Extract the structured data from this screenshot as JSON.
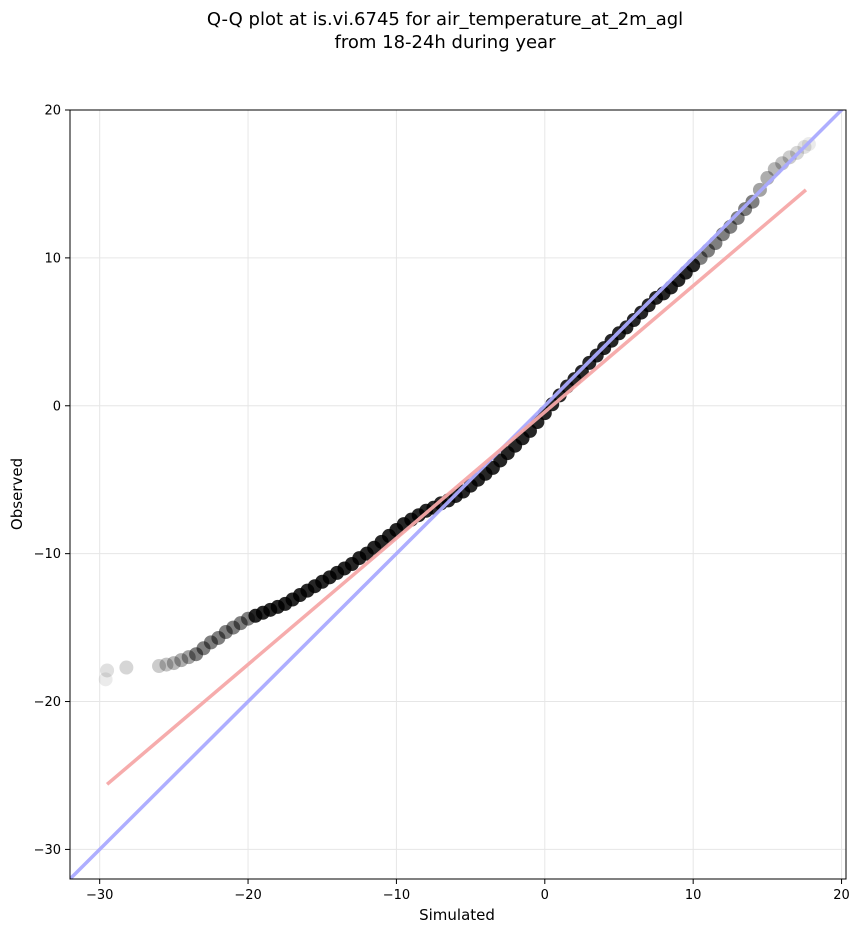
{
  "chart_data": {
    "type": "scatter",
    "title_line1": "Q-Q plot at is.vi.6745 for air_temperature_at_2m_agl",
    "title_line2": "from 18-24h during year",
    "xlabel": "Simulated",
    "ylabel": "Observed",
    "xlim": [
      -32,
      20.3
    ],
    "ylim": [
      -32,
      20
    ],
    "xticks": [
      -30,
      -20,
      -10,
      0,
      10,
      20
    ],
    "yticks": [
      -30,
      -20,
      -10,
      0,
      10,
      20
    ],
    "xtick_labels": [
      "−30",
      "−20",
      "−10",
      "0",
      "10",
      "20"
    ],
    "ytick_labels": [
      "−30",
      "−20",
      "−10",
      "0",
      "10",
      "20"
    ],
    "grid": true,
    "colors": {
      "points": "#000000",
      "identity_line": "#aaaaff",
      "fit_line": "#f5a8a8"
    },
    "series": [
      {
        "kind": "scatter",
        "points": [
          [
            -29.6,
            -18.5
          ],
          [
            -29.5,
            -17.9
          ],
          [
            -28.2,
            -17.7
          ],
          [
            -26.0,
            -17.6
          ],
          [
            -25.5,
            -17.5
          ],
          [
            -25.0,
            -17.4
          ],
          [
            -24.5,
            -17.2
          ],
          [
            -24.0,
            -17.0
          ],
          [
            -23.5,
            -16.8
          ],
          [
            -23.0,
            -16.4
          ],
          [
            -22.5,
            -16.0
          ],
          [
            -22.0,
            -15.7
          ],
          [
            -21.5,
            -15.3
          ],
          [
            -21.0,
            -15.0
          ],
          [
            -20.5,
            -14.7
          ],
          [
            -20.0,
            -14.4
          ],
          [
            -19.5,
            -14.2
          ],
          [
            -19.0,
            -14.0
          ],
          [
            -18.5,
            -13.8
          ],
          [
            -18.0,
            -13.6
          ],
          [
            -17.5,
            -13.4
          ],
          [
            -17.0,
            -13.1
          ],
          [
            -16.5,
            -12.8
          ],
          [
            -16.0,
            -12.5
          ],
          [
            -15.5,
            -12.2
          ],
          [
            -15.0,
            -11.9
          ],
          [
            -14.5,
            -11.6
          ],
          [
            -14.0,
            -11.3
          ],
          [
            -13.5,
            -11.0
          ],
          [
            -13.0,
            -10.7
          ],
          [
            -12.5,
            -10.3
          ],
          [
            -12.0,
            -10.0
          ],
          [
            -11.5,
            -9.6
          ],
          [
            -11.0,
            -9.2
          ],
          [
            -10.5,
            -8.8
          ],
          [
            -10.0,
            -8.4
          ],
          [
            -9.5,
            -8.0
          ],
          [
            -9.0,
            -7.7
          ],
          [
            -8.5,
            -7.4
          ],
          [
            -8.0,
            -7.1
          ],
          [
            -7.5,
            -6.9
          ],
          [
            -7.0,
            -6.6
          ],
          [
            -6.5,
            -6.4
          ],
          [
            -6.0,
            -6.1
          ],
          [
            -5.5,
            -5.8
          ],
          [
            -5.0,
            -5.4
          ],
          [
            -4.5,
            -5.0
          ],
          [
            -4.0,
            -4.6
          ],
          [
            -3.5,
            -4.2
          ],
          [
            -3.0,
            -3.7
          ],
          [
            -2.5,
            -3.2
          ],
          [
            -2.0,
            -2.7
          ],
          [
            -1.5,
            -2.2
          ],
          [
            -1.0,
            -1.7
          ],
          [
            -0.5,
            -1.1
          ],
          [
            0.0,
            -0.5
          ],
          [
            0.5,
            0.1
          ],
          [
            1.0,
            0.7
          ],
          [
            1.5,
            1.3
          ],
          [
            2.0,
            1.8
          ],
          [
            2.5,
            2.3
          ],
          [
            3.0,
            2.9
          ],
          [
            3.5,
            3.4
          ],
          [
            4.0,
            3.9
          ],
          [
            4.5,
            4.4
          ],
          [
            5.0,
            4.9
          ],
          [
            5.5,
            5.3
          ],
          [
            6.0,
            5.8
          ],
          [
            6.5,
            6.3
          ],
          [
            7.0,
            6.8
          ],
          [
            7.5,
            7.3
          ],
          [
            8.0,
            7.6
          ],
          [
            8.5,
            8.0
          ],
          [
            9.0,
            8.5
          ],
          [
            9.5,
            9.0
          ],
          [
            10.0,
            9.5
          ],
          [
            10.5,
            10.0
          ],
          [
            11.0,
            10.5
          ],
          [
            11.5,
            11.0
          ],
          [
            12.0,
            11.6
          ],
          [
            12.5,
            12.1
          ],
          [
            13.0,
            12.7
          ],
          [
            13.5,
            13.3
          ],
          [
            14.0,
            13.8
          ],
          [
            14.5,
            14.6
          ],
          [
            15.0,
            15.4
          ],
          [
            15.5,
            16.0
          ],
          [
            16.0,
            16.4
          ],
          [
            16.5,
            16.8
          ],
          [
            17.0,
            17.1
          ],
          [
            17.5,
            17.5
          ],
          [
            17.8,
            17.7
          ]
        ]
      },
      {
        "kind": "identity-line",
        "points": [
          [
            -32,
            -32
          ],
          [
            20.3,
            20.3
          ]
        ]
      },
      {
        "kind": "fit-line",
        "points": [
          [
            -29.5,
            -25.6
          ],
          [
            17.6,
            14.6
          ]
        ]
      }
    ]
  }
}
